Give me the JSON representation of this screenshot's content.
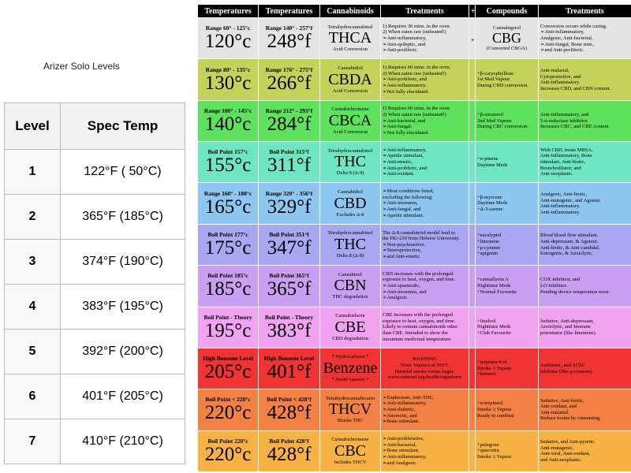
{
  "left": {
    "title": "Arizer Solo Levels",
    "headers": [
      "Level",
      "Spec Temp"
    ],
    "rows": [
      [
        "1",
        "122°F ( 50°C)"
      ],
      [
        "2",
        "365°F (185°C)"
      ],
      [
        "3",
        "374°F (190°C)"
      ],
      [
        "4",
        "383°F (195°C)"
      ],
      [
        "5",
        "392°F (200°C)"
      ],
      [
        "6",
        "401°F (205°C)"
      ],
      [
        "7",
        "410°F (210°C)"
      ]
    ]
  },
  "chart": {
    "headers": [
      "Temperatures",
      "Temperatures",
      "Cannabinoids",
      "Treatments",
      "+",
      "Compounds",
      "Treatments"
    ],
    "rows": [
      {
        "color": "#e4e4e4",
        "t1l": "Range 60° - 125°c",
        "t1": "120°c",
        "t2l": "Range 140° - 257°f",
        "t2": "248°f",
        "cn": "Tetrahydrocannabinol",
        "ab": "THCA",
        "sub": "Acid Conversion",
        "tr": [
          "1) Requires 30 mins. in the oven.",
          "2) When eaten raw (unheated!)",
          "➢Anti-inflammatory,",
          "➢Anti-epileptic, and",
          "➢Anti-proliferic."
        ],
        "plus": "+",
        "comp": [
          "Cannabigerol",
          "CBG",
          "(Converted CBGA)"
        ],
        "tr2": [
          "Conversion occurs while curing.",
          "➢Anti-inflammatory,",
          "Analgesic, Anti-bacterial,",
          "➢Anti-fungal, Bone stim.,",
          "➢and Anti-proliferic."
        ]
      },
      {
        "color": "#c5d259",
        "t1l": "Range 80° - 135°c",
        "t1": "130°c",
        "t2l": "Range 176° - 275°f",
        "t2": "266°f",
        "cn": "Cannabidiol",
        "ab": "CBDA",
        "sub": "Acid Conversion",
        "tr": [
          "1) Requires 60 mins. in the oven.",
          "2) When eaten raw (unheated!)",
          "➢Anti-proliferic, and",
          "➢Anti-inflammatory.",
          "➢Not fully elucidated."
        ],
        "comp": [
          "+β-caryophyllene",
          "1st Med Vapour",
          "During CBD conversion."
        ],
        "tr2": [
          "Anti-malarial,",
          "Cytoprotective, and",
          "Anti-inflammatory.",
          "Increases CBD, and CBN content."
        ]
      },
      {
        "color": "#5ee25e",
        "t1l": "Range 100° - 145°c",
        "t1": "140°c",
        "t2l": "Range 212° - 293°f",
        "t2": "284°f",
        "cn": "Cannabichromene",
        "ab": "CBCA",
        "sub": "Acid Conversion",
        "tr": [
          "1) Requires 60 mins. in the oven.",
          "2) When eaten raw (unheated!)",
          "➢Anti-bacterial, and",
          "➢Anti-fungal.",
          "➢Not fully elucidated."
        ],
        "comp": [
          "+β-sitosterol",
          "2nd Med Vapour",
          "During CBC conversion."
        ],
        "tr2": [
          "Anti-inflammatory, and",
          "5-α-reductase inhibitor.",
          "Increases CBC, and CBE content."
        ]
      },
      {
        "color": "#6fe6c2",
        "t1l": "Boil Point 157°c",
        "t1": "155°c",
        "t2l": "Boil Point 315°f",
        "t2": "311°f",
        "cn": "Tetrahydrocannabinol",
        "ab": "THC",
        "sub": "Delta 9 (Δ-9)",
        "tr": [
          "➢Anti-inflammatory,",
          "➢Apetite stimulant,",
          "➢Anti-emetic,",
          "➢Anti-proliferic, and",
          "➢Anti-oxidant."
        ],
        "comp": [
          "+α-pinene",
          "Daytime Meds"
        ],
        "tr2": [
          "With CBD, treats MRSA,",
          "Anti-inflammatory, Bone",
          "stimulant, Anti-biotic,",
          "Bronchodilator, and",
          "Anti-neoplastic."
        ]
      },
      {
        "color": "#8dc7f1",
        "t1l": "Range 160° - 180°c",
        "t1": "165°c",
        "t2l": "Range 320° - 356°f",
        "t2": "329°f",
        "cn": "Cannabidiol",
        "ab": "CBD",
        "sub": "Excludes Δ-8",
        "tr": [
          "➢Most conditions listed,",
          "excluding the following:",
          "➢Anti-insomnia,",
          "➢Anti-fungal, and",
          "➢Apetite stimulant."
        ],
        "comp": [
          "+β-myrcene",
          "Daytime Meds",
          "+Δ-3-carene"
        ],
        "tr2": [
          "Analgesic, Anti-biotic,",
          "Anti-mutagenic, and Agonist.",
          "Anti-inflammatory.",
          "Anti-inflammatory."
        ]
      },
      {
        "color": "#a9a6f2",
        "t1l": "Boil Point 177°c",
        "t1": "175°c",
        "t2l": "Boil Point 351°f",
        "t2": "347°f",
        "cn": "Tetrahydrocannabinol",
        "ab": "THC",
        "sub": "Delta 8 (Δ-8)",
        "tr": [
          "The Δ-8 cannabinoid model lead to",
          "the HU-210 from Hebrew University.",
          "➢Non-psychoactive.",
          "➢Neuroprotective,",
          "➢and Anti-emetic."
        ],
        "comp": [
          "+eucalyptol",
          "+limonene",
          "+ρ-cymene",
          "+apigenin"
        ],
        "tr2": [
          "Blood blood flow stimulant.",
          "Anti-depressant, & Agonist.",
          "Anti-biotic, & Anti-candidal.",
          "Estrogenic, & Anxiolytic."
        ]
      },
      {
        "color": "#c99ff1",
        "t1l": "Boil Point 185°c",
        "t1": "185°c",
        "t2l": "Boil Point 365°f",
        "t2": "365°f",
        "cn": "Cannabinol",
        "ab": "CBN",
        "sub": "THC degradation",
        "tr": [
          "CBN increases with the prolonged",
          "exposure to heat, oxygen, and time.",
          "➢Anti-spasmodic,",
          "➢Anti-insomnia, and",
          "➢Analgesic."
        ],
        "comp": [
          "+cannaflavin A",
          "Nighttime Meds",
          "+Normal Favourite"
        ],
        "tr2": [
          "COX inhibitor, and",
          "LO inhibitor.",
          "Pending device temperature error."
        ]
      },
      {
        "color": "#f1a2f1",
        "t1l": "Boil Point - Theory",
        "t1": "195°c",
        "t2l": "Boil Point - Theory",
        "t2": "383°f",
        "cn": "Cannabielsoin",
        "ab": "CBE",
        "sub": "CBD degradation",
        "tr": [
          "CBE increases with the prolonged",
          "exposure to heat, oxygen, and time.",
          "Likely to contain cannabinoids other",
          "than CBE. Intended to show the",
          "maximum medicinal temperature."
        ],
        "comp": [
          "+linalool",
          "Nighttime Meds",
          "+Club Favourite"
        ],
        "tr2": [
          "Sedative, Anti-depressant,",
          "Anxiolytic, and Immune",
          "potentiator (like limonene)."
        ]
      },
      {
        "color": "#f03434",
        "t1l": "High Benzene Level",
        "t1": "205°c",
        "t2l": "High Benzene Level",
        "t2": "401°f",
        "cn": "* Hydrocarbons *",
        "ab": "Benzene",
        "sub": "* Avoid vapours *",
        "tr": [
          "WARNING",
          "Toxic Vapours at 392°f.",
          "Harmful smoke toxins begin:",
          "www.canorml.org/health/vaporizers"
        ],
        "comp": [
          "+terpinen-4-ol",
          "Smoke ≥ Vapour",
          "+borneol"
        ],
        "tr2": [
          "Antibiotic, and AChE",
          "inhibitor (like ρ-cymene)."
        ]
      },
      {
        "color": "#f28143",
        "t1l": "Boil Point < 220°c",
        "t1": "220°c",
        "t2l": "Boil Point < 428°f",
        "t2": "428°f",
        "cn": "Tetrahydrocannabivarin",
        "ab": "THCV",
        "sub": "Blocks THC",
        "tr": [
          "➢Euphoriant, Anti-THC.",
          "➢Anti-inflammatory,",
          "➢Anti-diabetic,",
          "➢Anorectic, and",
          "➢Bone stimulant."
        ],
        "comp": [
          "+α-terpineol",
          "Smoke ≥ Vapour",
          "Ready to combust"
        ],
        "tr2": [
          "Sedative, Anti-biotic,",
          "Anti-oxidant, and",
          "Anti-malarial.",
          "Reduce toxins by consuming."
        ]
      },
      {
        "color": "#f8b143",
        "t1l": "Boil Point 220°c",
        "t1": "220°c",
        "t2l": "Boil Point 428°f",
        "t2": "428°f",
        "cn": "Cannabichromene",
        "ab": "CBC",
        "sub": "Includes THCV",
        "tr": [
          "➢Anti-proliferative,",
          "➢Anti-bacterial,",
          "➢Bone stimulant,",
          "➢Anti-inflammatory,",
          "➢and Analgesic."
        ],
        "comp": [
          "+pulegone",
          "+quercetin",
          "Smoke ≥ Vapour"
        ],
        "tr2": [
          "Sedative, and Anti-pyretic.",
          "Anti-mutagenic,",
          "Anti-viral, Anti-oxidant,",
          "and Anti-neoplastic."
        ]
      }
    ]
  }
}
